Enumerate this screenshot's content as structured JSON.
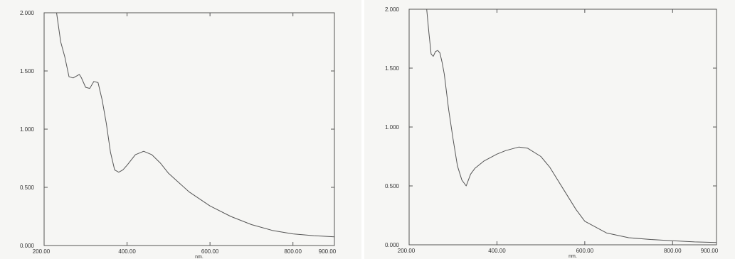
{
  "chart_data": [
    {
      "type": "line",
      "xlabel": "nm.",
      "ylabel": "",
      "xlim": [
        200,
        900
      ],
      "ylim": [
        0,
        2
      ],
      "x_ticks": [
        "200.00",
        "400.00",
        "600.00",
        "800.00",
        "900.00"
      ],
      "y_ticks": [
        "0.000",
        "0.500",
        "1.000",
        "1.500",
        "2.000"
      ],
      "grid": false,
      "series": [
        {
          "color": "#555555",
          "x": [
            230,
            240,
            250,
            260,
            270,
            280,
            285,
            290,
            300,
            310,
            320,
            330,
            340,
            350,
            360,
            370,
            380,
            390,
            400,
            420,
            440,
            460,
            480,
            500,
            550,
            600,
            650,
            700,
            750,
            800,
            850,
            900
          ],
          "y": [
            2.0,
            1.75,
            1.62,
            1.45,
            1.44,
            1.46,
            1.47,
            1.44,
            1.36,
            1.35,
            1.41,
            1.4,
            1.25,
            1.05,
            0.8,
            0.65,
            0.63,
            0.65,
            0.69,
            0.78,
            0.81,
            0.78,
            0.71,
            0.62,
            0.46,
            0.34,
            0.25,
            0.18,
            0.13,
            0.1,
            0.085,
            0.075
          ]
        }
      ]
    },
    {
      "type": "line",
      "xlabel": "nm.",
      "ylabel": "",
      "xlim": [
        200,
        900
      ],
      "ylim": [
        0,
        2
      ],
      "x_ticks": [
        "200.00",
        "400.00",
        "600.00",
        "800.00",
        "900.00"
      ],
      "y_ticks": [
        "0.000",
        "0.500",
        "1.000",
        "1.500",
        "2.000"
      ],
      "grid": false,
      "series": [
        {
          "color": "#555555",
          "x": [
            240,
            245,
            250,
            255,
            260,
            265,
            270,
            275,
            280,
            290,
            300,
            310,
            320,
            330,
            340,
            350,
            370,
            400,
            420,
            450,
            470,
            500,
            520,
            550,
            580,
            600,
            650,
            700,
            750,
            800,
            850,
            900
          ],
          "y": [
            2.0,
            1.8,
            1.62,
            1.6,
            1.64,
            1.65,
            1.63,
            1.55,
            1.45,
            1.15,
            0.9,
            0.67,
            0.55,
            0.5,
            0.6,
            0.65,
            0.71,
            0.77,
            0.8,
            0.83,
            0.82,
            0.75,
            0.66,
            0.48,
            0.3,
            0.2,
            0.1,
            0.06,
            0.045,
            0.035,
            0.025,
            0.02
          ]
        }
      ]
    }
  ]
}
